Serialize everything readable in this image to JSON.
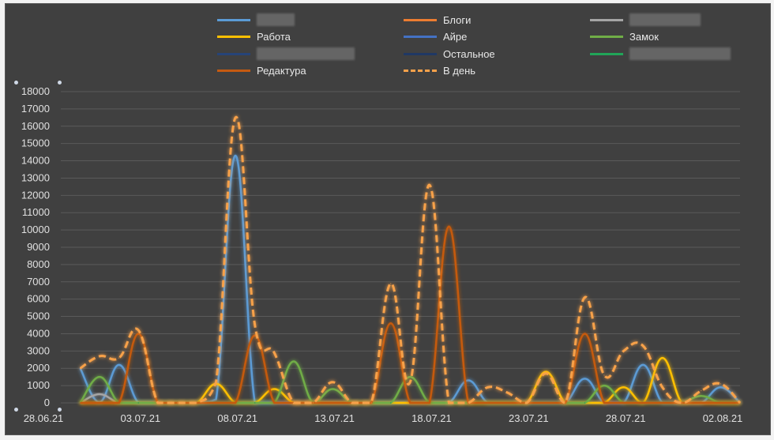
{
  "chart_data": {
    "type": "line",
    "title": "",
    "xlabel": "",
    "ylabel": "",
    "ylim": [
      0,
      18000
    ],
    "xlim": [
      "28.06.21",
      "02.08.21"
    ],
    "ytick_labels": [
      "0",
      "1000",
      "2000",
      "3000",
      "4000",
      "5000",
      "6000",
      "7000",
      "8000",
      "9000",
      "10000",
      "11000",
      "12000",
      "13000",
      "14000",
      "15000",
      "16000",
      "17000",
      "18000"
    ],
    "xtick_labels": [
      "28.06.21",
      "03.07.21",
      "08.07.21",
      "13.07.21",
      "18.07.21",
      "23.07.21",
      "28.07.21",
      "02.08.21"
    ],
    "grid": "horizontal",
    "legend_position": "top",
    "series": [
      {
        "name": "",
        "color": "#5b9bd5",
        "redacted": true,
        "dashed": false,
        "values": [
          2000,
          50,
          2200,
          0,
          0,
          0,
          0,
          200,
          14300,
          0,
          0,
          0,
          0,
          0,
          0,
          0,
          0,
          0,
          0,
          0,
          1300,
          0,
          0,
          0,
          0,
          0,
          1400,
          0,
          0,
          2200,
          0,
          0,
          0,
          900,
          0
        ]
      },
      {
        "name": "Блоги",
        "color": "#ed7d31",
        "redacted": false,
        "dashed": false,
        "values": [
          0,
          0,
          0,
          0,
          0,
          0,
          0,
          0,
          0,
          0,
          0,
          0,
          0,
          0,
          0,
          0,
          0,
          0,
          0,
          0,
          0,
          0,
          0,
          0,
          0,
          0,
          0,
          0,
          0,
          0,
          0,
          0,
          0,
          0,
          0
        ]
      },
      {
        "name": "",
        "color": "#a5a5a5",
        "redacted": true,
        "dashed": false,
        "values": [
          0,
          500,
          0,
          0,
          0,
          0,
          0,
          0,
          0,
          0,
          0,
          0,
          0,
          0,
          0,
          0,
          0,
          0,
          0,
          0,
          0,
          0,
          0,
          0,
          0,
          0,
          0,
          0,
          0,
          0,
          0,
          0,
          0,
          0,
          0
        ]
      },
      {
        "name": "Работа",
        "color": "#ffc000",
        "redacted": false,
        "dashed": false,
        "values": [
          0,
          0,
          0,
          0,
          0,
          0,
          0,
          1100,
          0,
          0,
          800,
          0,
          0,
          0,
          0,
          0,
          0,
          0,
          0,
          0,
          0,
          0,
          0,
          0,
          1800,
          0,
          0,
          0,
          900,
          0,
          2600,
          0,
          0,
          0,
          0
        ]
      },
      {
        "name": "Айре",
        "color": "#4472c4",
        "redacted": false,
        "dashed": false,
        "values": [
          0,
          0,
          0,
          0,
          0,
          0,
          0,
          0,
          0,
          0,
          0,
          0,
          0,
          0,
          0,
          0,
          0,
          0,
          0,
          0,
          0,
          0,
          0,
          0,
          0,
          0,
          0,
          0,
          0,
          0,
          0,
          0,
          0,
          0,
          0
        ]
      },
      {
        "name": "Замок",
        "color": "#70ad47",
        "redacted": false,
        "dashed": false,
        "values": [
          0,
          1500,
          0,
          0,
          0,
          0,
          0,
          0,
          0,
          0,
          0,
          2400,
          0,
          800,
          0,
          0,
          0,
          1500,
          0,
          0,
          0,
          0,
          0,
          0,
          0,
          0,
          0,
          1000,
          0,
          0,
          0,
          0,
          400,
          0,
          0
        ]
      },
      {
        "name": "",
        "color": "#264478",
        "redacted": true,
        "dashed": false,
        "values": [
          0,
          0,
          0,
          0,
          0,
          0,
          0,
          0,
          0,
          0,
          0,
          0,
          0,
          0,
          0,
          0,
          0,
          0,
          0,
          0,
          0,
          0,
          0,
          0,
          0,
          0,
          0,
          0,
          0,
          0,
          0,
          0,
          0,
          0,
          0
        ]
      },
      {
        "name": "Остальное",
        "color": "#203864",
        "redacted": false,
        "dashed": false,
        "values": [
          0,
          0,
          0,
          0,
          0,
          0,
          0,
          0,
          0,
          0,
          0,
          0,
          0,
          0,
          0,
          0,
          0,
          0,
          0,
          0,
          0,
          0,
          0,
          0,
          0,
          0,
          0,
          0,
          0,
          0,
          0,
          0,
          0,
          0,
          0
        ]
      },
      {
        "name": "",
        "color": "#21a558",
        "redacted": true,
        "dashed": false,
        "values": [
          0,
          0,
          0,
          0,
          0,
          0,
          0,
          0,
          0,
          0,
          0,
          0,
          0,
          0,
          0,
          0,
          0,
          0,
          0,
          0,
          0,
          0,
          0,
          0,
          0,
          0,
          0,
          0,
          0,
          0,
          0,
          0,
          0,
          0,
          0
        ]
      },
      {
        "name": "Редактура",
        "color": "#c55a11",
        "redacted": false,
        "dashed": false,
        "values": [
          0,
          0,
          0,
          4000,
          0,
          0,
          0,
          0,
          0,
          3900,
          0,
          0,
          0,
          0,
          0,
          0,
          4600,
          0,
          0,
          10200,
          0,
          0,
          0,
          0,
          0,
          0,
          4000,
          0,
          0,
          0,
          0,
          0,
          0,
          0,
          0
        ]
      },
      {
        "name": "В день",
        "color": "#f7a14a",
        "redacted": false,
        "dashed": true,
        "values": [
          2000,
          2700,
          2600,
          4200,
          0,
          0,
          0,
          1200,
          16500,
          4500,
          2900,
          0,
          0,
          1200,
          0,
          0,
          6900,
          1200,
          12600,
          0,
          0,
          900,
          600,
          0,
          1700,
          0,
          6100,
          1600,
          3000,
          3300,
          900,
          0,
          700,
          1100,
          0
        ]
      }
    ],
    "x": [
      "29.06",
      "30.06",
      "01.07",
      "02.07",
      "03.07",
      "04.07",
      "05.07",
      "06.07",
      "07.07",
      "08.07",
      "09.07",
      "10.07",
      "11.07",
      "12.07",
      "13.07",
      "14.07",
      "15.07",
      "16.07",
      "17.07",
      "18.07",
      "19.07",
      "20.07",
      "21.07",
      "22.07",
      "23.07",
      "24.07",
      "25.07",
      "26.07",
      "27.07",
      "28.07",
      "29.07",
      "30.07",
      "31.07",
      "01.08",
      "02.08"
    ]
  }
}
